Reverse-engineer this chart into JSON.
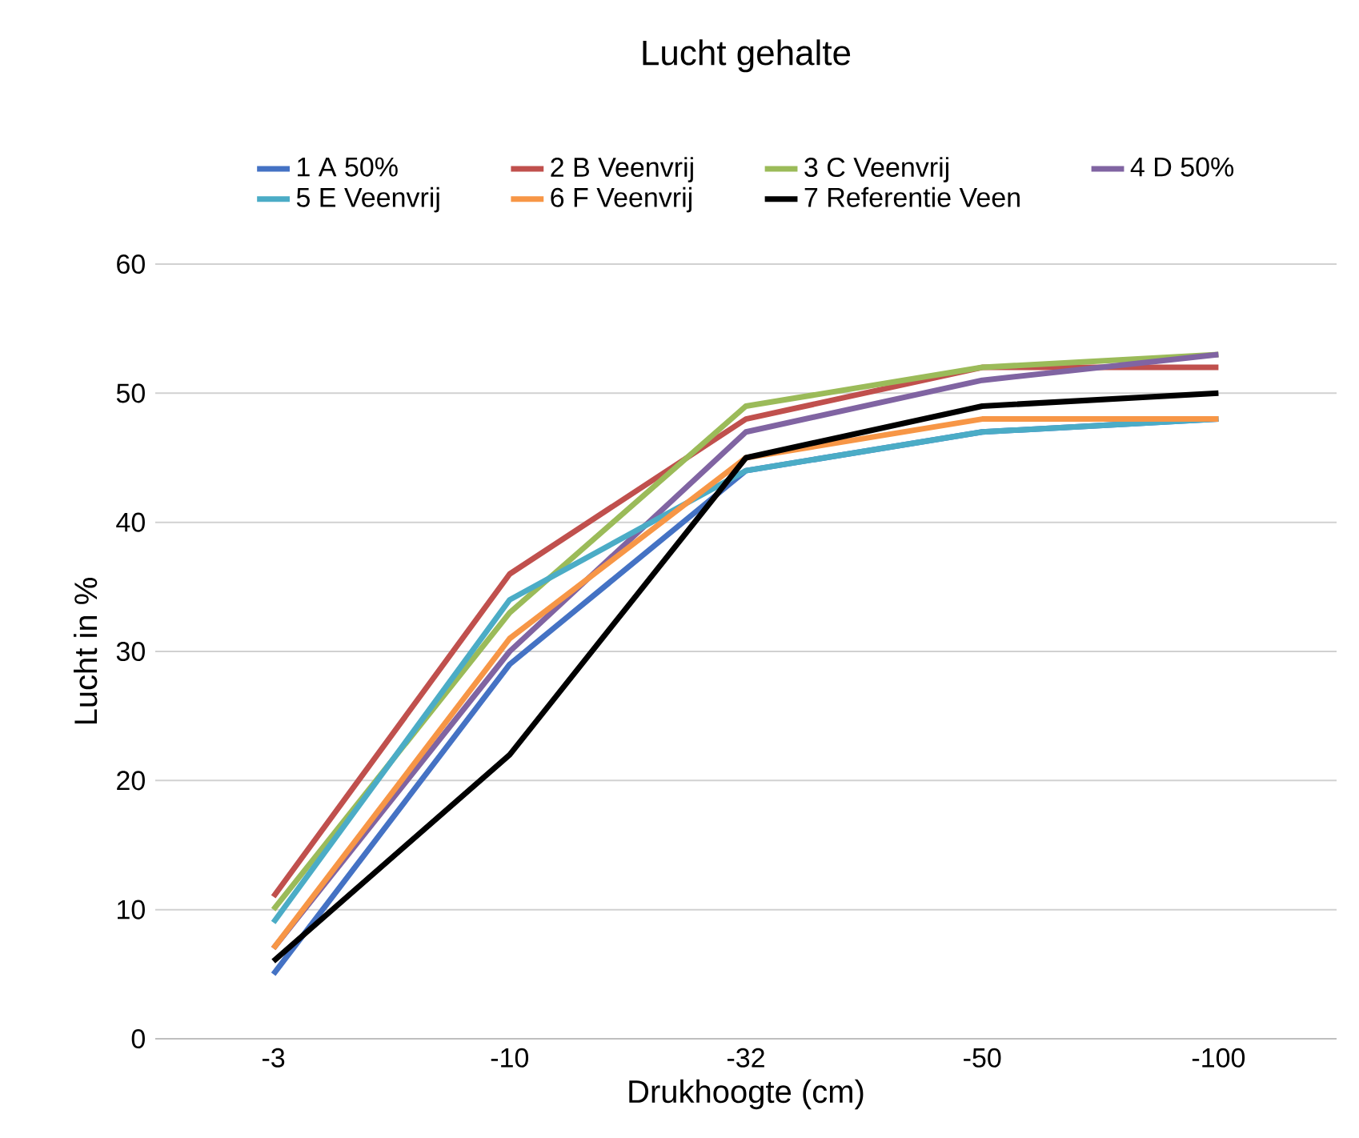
{
  "chart_data": {
    "type": "line",
    "title": "Lucht gehalte",
    "xlabel": "Drukhoogte (cm)",
    "ylabel": "Lucht in %",
    "categories": [
      "-3",
      "-10",
      "-32",
      "-50",
      "-100"
    ],
    "ylim": [
      0,
      60
    ],
    "yticks": [
      0,
      10,
      20,
      30,
      40,
      50,
      60
    ],
    "grid": "y",
    "legend": "top",
    "marker": "none",
    "line_style": "solid",
    "series": [
      {
        "name": "1 A 50%",
        "color": "#4472c4",
        "values": [
          5,
          29,
          44,
          47,
          48
        ]
      },
      {
        "name": "2 B Veenvrij",
        "color": "#c0504d",
        "values": [
          11,
          36,
          48,
          52,
          52
        ]
      },
      {
        "name": "3 C Veenvrij",
        "color": "#9bbb59",
        "values": [
          10,
          33,
          49,
          52,
          53
        ]
      },
      {
        "name": "4 D 50%",
        "color": "#8064a2",
        "values": [
          7,
          30,
          47,
          51,
          53
        ]
      },
      {
        "name": "5 E Veenvrij",
        "color": "#4bacc6",
        "values": [
          9,
          34,
          44,
          47,
          48
        ]
      },
      {
        "name": "6 F Veenvrij",
        "color": "#f79646",
        "values": [
          7,
          31,
          45,
          48,
          48
        ]
      },
      {
        "name": "7 Referentie Veen",
        "color": "#000000",
        "values": [
          6,
          22,
          45,
          49,
          50
        ]
      }
    ]
  }
}
